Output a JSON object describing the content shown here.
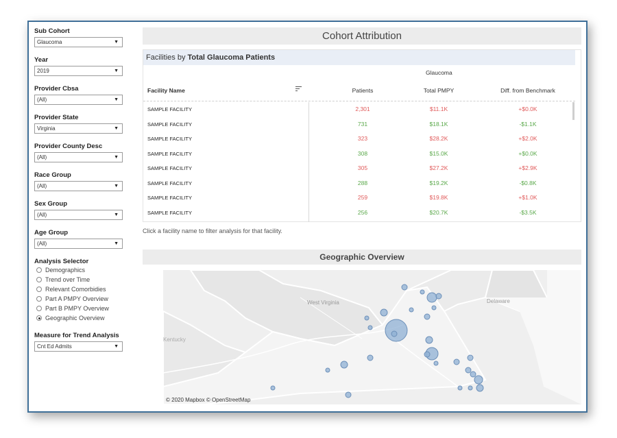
{
  "filters": [
    {
      "label": "Sub Cohort",
      "value": "Glaucoma"
    },
    {
      "label": "Year",
      "value": "2019"
    },
    {
      "label": "Provider Cbsa",
      "value": "(All)"
    },
    {
      "label": "Provider State",
      "value": "Virginia"
    },
    {
      "label": "Provider County Desc",
      "value": "(All)"
    },
    {
      "label": "Race Group",
      "value": "(All)"
    },
    {
      "label": "Sex Group",
      "value": "(All)"
    },
    {
      "label": "Age Group",
      "value": "(All)"
    }
  ],
  "analysis": {
    "label": "Analysis Selector",
    "options": [
      "Demographics",
      "Trend over Time",
      "Relevant Comorbidies",
      "Part A PMPY Overview",
      "Part B PMPY Overview",
      "Geographic Overview"
    ],
    "selected": "Geographic Overview"
  },
  "measure": {
    "label": "Measure for Trend Analysis",
    "value": "Cnt Ed Admits"
  },
  "header": {
    "title": "Cohort Attribution"
  },
  "table": {
    "title_prefix": "Facilities by ",
    "title_bold": "Total Glaucoma Patients",
    "group_label": "Glaucoma",
    "columns": {
      "facility": "Facility Name",
      "patients": "Patients",
      "pmpy": "Total PMPY",
      "diff": "Diff. from Benchmark"
    },
    "rows": [
      {
        "name": "SAMPLE FACILITY",
        "patients": "2,301",
        "pmpy": "$11.1K",
        "diff": "+$0.0K",
        "patients_status": "red",
        "pmpy_status": "red",
        "diff_status": "red"
      },
      {
        "name": "SAMPLE FACILITY",
        "patients": "731",
        "pmpy": "$18.1K",
        "diff": "-$1.1K",
        "patients_status": "green",
        "pmpy_status": "green",
        "diff_status": "green"
      },
      {
        "name": "SAMPLE FACILITY",
        "patients": "323",
        "pmpy": "$28.2K",
        "diff": "+$2.0K",
        "patients_status": "red",
        "pmpy_status": "red",
        "diff_status": "red"
      },
      {
        "name": "SAMPLE FACILITY",
        "patients": "308",
        "pmpy": "$15.0K",
        "diff": "+$0.0K",
        "patients_status": "green",
        "pmpy_status": "green",
        "diff_status": "green"
      },
      {
        "name": "SAMPLE FACILITY",
        "patients": "305",
        "pmpy": "$27.2K",
        "diff": "+$2.9K",
        "patients_status": "red",
        "pmpy_status": "red",
        "diff_status": "red"
      },
      {
        "name": "SAMPLE FACILITY",
        "patients": "288",
        "pmpy": "$19.2K",
        "diff": "-$0.8K",
        "patients_status": "green",
        "pmpy_status": "green",
        "diff_status": "green"
      },
      {
        "name": "SAMPLE FACILITY",
        "patients": "259",
        "pmpy": "$19.8K",
        "diff": "+$1.0K",
        "patients_status": "red",
        "pmpy_status": "red",
        "diff_status": "red"
      },
      {
        "name": "SAMPLE FACILITY",
        "patients": "256",
        "pmpy": "$20.7K",
        "diff": "-$3.5K",
        "patients_status": "green",
        "pmpy_status": "green",
        "diff_status": "green"
      }
    ]
  },
  "note": "Click a facility name to filter analysis for that facility.",
  "geo": {
    "title": "Geographic Overview",
    "attribution": "© 2020 Mapbox  © OpenStreetMap",
    "map_labels": [
      "West Virginia",
      "Delaware",
      "Kentucky"
    ]
  },
  "colors": {
    "red": "#e05a5a",
    "green": "#5aa84a",
    "accent_border": "#3f6f98",
    "bubble": "#8fb0d4"
  }
}
